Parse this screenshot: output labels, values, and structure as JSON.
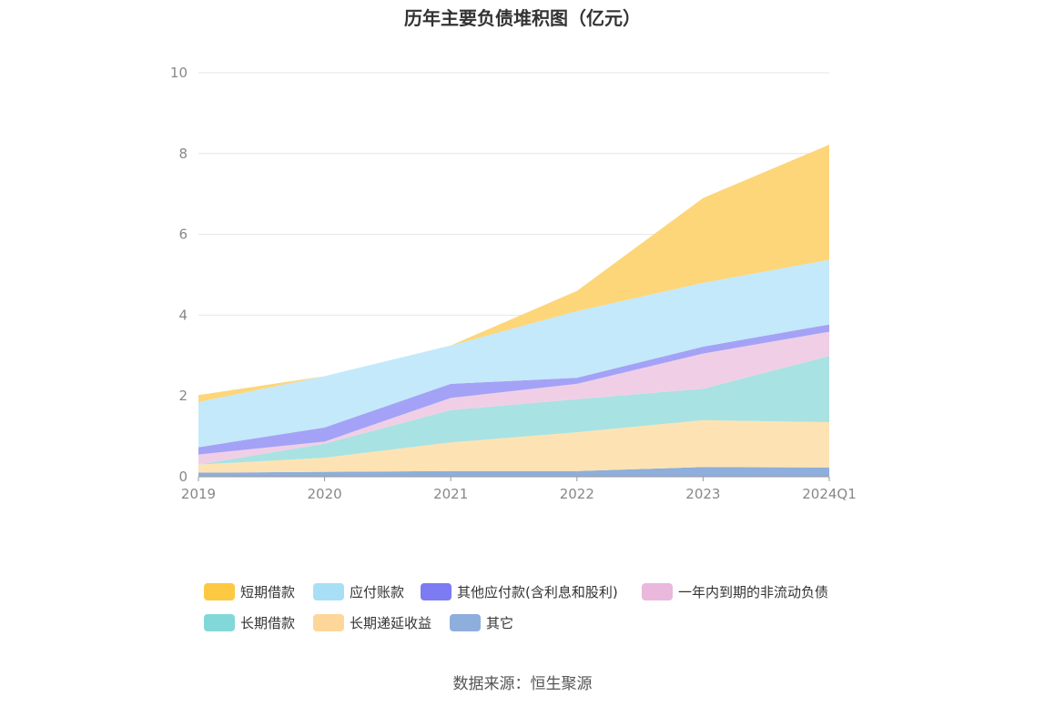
{
  "title": "历年主要负债堆积图（亿元）",
  "source": "数据来源：恒生聚源",
  "chart_data": {
    "type": "area",
    "stacked": true,
    "categories": [
      "2019",
      "2020",
      "2021",
      "2022",
      "2023",
      "2024Q1"
    ],
    "ylim": [
      0,
      10
    ],
    "yticks": [
      0,
      2,
      4,
      6,
      8,
      10
    ],
    "grid": true,
    "legend_position": "bottom",
    "series": [
      {
        "name": "其它",
        "color": "#8eaedc",
        "values": [
          0.1,
          0.12,
          0.14,
          0.14,
          0.24,
          0.23
        ]
      },
      {
        "name": "长期递延收益",
        "color": "#fde3b3",
        "values": [
          0.2,
          0.35,
          0.71,
          0.96,
          1.16,
          1.12
        ]
      },
      {
        "name": "长期借款",
        "color": "#a9e2e2",
        "values": [
          0.0,
          0.35,
          0.8,
          0.82,
          0.78,
          1.64
        ]
      },
      {
        "name": "一年内到期的非流动负债",
        "color": "#f0cfe6",
        "values": [
          0.25,
          0.05,
          0.3,
          0.38,
          0.87,
          0.6
        ]
      },
      {
        "name": "其他应付款(含利息和股利)",
        "color": "#a4a2f6",
        "values": [
          0.18,
          0.35,
          0.35,
          0.15,
          0.17,
          0.18
        ]
      },
      {
        "name": "应付账款",
        "color": "#c3e9fa",
        "values": [
          1.12,
          1.27,
          0.95,
          1.65,
          1.58,
          1.6
        ]
      },
      {
        "name": "短期借款",
        "color": "#fdd67a",
        "values": [
          0.17,
          0.0,
          0.0,
          0.5,
          2.1,
          2.85
        ]
      }
    ]
  },
  "legend": [
    {
      "label": "短期借款",
      "color": "#fdc942"
    },
    {
      "label": "应付账款",
      "color": "#a8dff6"
    },
    {
      "label": "其他应付款(含利息和股利)",
      "color": "#7c7bf2"
    },
    {
      "label": "一年内到期的非流动负债",
      "color": "#eab8dc"
    },
    {
      "label": "长期借款",
      "color": "#82d8d8"
    },
    {
      "label": "长期递延收益",
      "color": "#fdd79a"
    },
    {
      "label": "其它",
      "color": "#8eaedc"
    }
  ]
}
